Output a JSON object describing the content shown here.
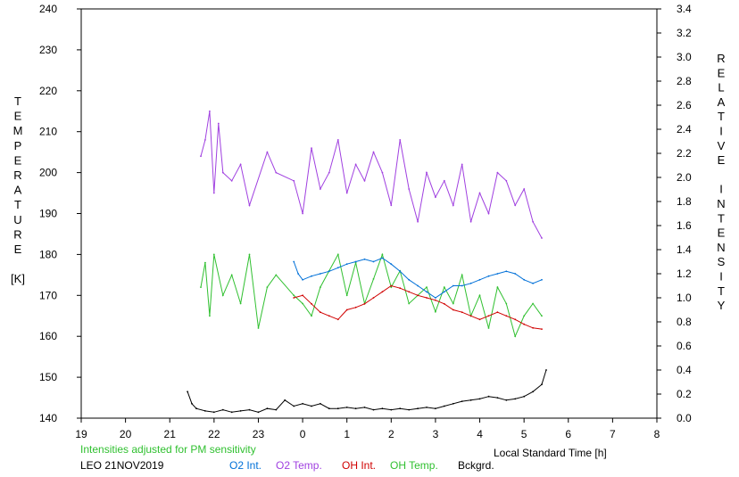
{
  "chart_data": {
    "type": "line",
    "title": "",
    "xlabel": "Local Standard Time [h]",
    "ylabel_left_letters": [
      "T",
      "E",
      "M",
      "P",
      "E",
      "R",
      "A",
      "T",
      "U",
      "R",
      "E",
      "",
      "[K]"
    ],
    "ylabel_right_letters": [
      "R",
      "E",
      "L",
      "A",
      "T",
      "I",
      "V",
      "E",
      "",
      "I",
      "N",
      "T",
      "E",
      "N",
      "S",
      "I",
      "T",
      "Y"
    ],
    "x_ticks": [
      "19",
      "20",
      "21",
      "22",
      "23",
      "0",
      "1",
      "2",
      "3",
      "4",
      "5",
      "6",
      "7",
      "8"
    ],
    "left_ticks": [
      "140",
      "150",
      "160",
      "170",
      "180",
      "190",
      "200",
      "210",
      "220",
      "230",
      "240"
    ],
    "right_ticks": [
      "0.0",
      "0.2",
      "0.4",
      "0.6",
      "0.8",
      "1.0",
      "1.2",
      "1.4",
      "1.6",
      "1.8",
      "2.0",
      "2.2",
      "2.4",
      "2.6",
      "2.8",
      "3.0",
      "3.2",
      "3.4"
    ],
    "xlim": [
      19,
      32
    ],
    "ylim_left": [
      140,
      240
    ],
    "ylim_right": [
      0,
      3.4
    ],
    "grid": false,
    "note": "Intensities adjusted for PM sensitivity",
    "station": "LEO 21NOV2019",
    "series": [
      {
        "name": "O2 Int.",
        "axis": "right",
        "color": "#0070d8",
        "x": [
          23.8,
          23.9,
          24.0,
          24.2,
          24.4,
          24.6,
          24.8,
          25.0,
          25.2,
          25.4,
          25.6,
          25.8,
          26.0,
          26.2,
          26.4,
          26.6,
          26.8,
          27.0,
          27.2,
          27.4,
          27.6,
          27.8,
          28.0,
          28.2,
          28.4,
          28.6,
          28.8,
          29.0,
          29.2,
          29.4
        ],
        "values": [
          1.3,
          1.2,
          1.15,
          1.18,
          1.2,
          1.22,
          1.25,
          1.28,
          1.3,
          1.32,
          1.3,
          1.33,
          1.28,
          1.22,
          1.15,
          1.1,
          1.05,
          1.0,
          1.05,
          1.1,
          1.1,
          1.12,
          1.15,
          1.18,
          1.2,
          1.22,
          1.2,
          1.15,
          1.12,
          1.15
        ]
      },
      {
        "name": "O2 Temp.",
        "axis": "left",
        "color": "#a040e0",
        "x": [
          21.7,
          21.8,
          21.9,
          22.0,
          22.1,
          22.2,
          22.4,
          22.6,
          22.8,
          23.2,
          23.4,
          23.8,
          24.0,
          24.2,
          24.4,
          24.6,
          24.8,
          25.0,
          25.2,
          25.4,
          25.6,
          25.8,
          26.0,
          26.2,
          26.4,
          26.6,
          26.8,
          27.0,
          27.2,
          27.4,
          27.6,
          27.8,
          28.0,
          28.2,
          28.4,
          28.6,
          28.8,
          29.0,
          29.2,
          29.4
        ],
        "values": [
          204,
          208,
          215,
          195,
          212,
          200,
          198,
          202,
          192,
          205,
          200,
          198,
          190,
          206,
          196,
          200,
          208,
          195,
          202,
          198,
          205,
          200,
          192,
          208,
          196,
          188,
          200,
          194,
          198,
          192,
          202,
          188,
          195,
          190,
          200,
          198,
          192,
          196,
          188,
          184
        ]
      },
      {
        "name": "OH Int.",
        "axis": "right",
        "color": "#d00000",
        "x": [
          23.8,
          24.0,
          24.2,
          24.4,
          24.6,
          24.8,
          25.0,
          25.2,
          25.4,
          25.6,
          25.8,
          26.0,
          26.2,
          26.4,
          26.6,
          26.8,
          27.0,
          27.2,
          27.4,
          27.6,
          27.8,
          28.0,
          28.2,
          28.4,
          28.6,
          28.8,
          29.0,
          29.2,
          29.4
        ],
        "values": [
          1.0,
          1.02,
          0.95,
          0.88,
          0.85,
          0.82,
          0.9,
          0.92,
          0.95,
          1.0,
          1.05,
          1.1,
          1.08,
          1.05,
          1.02,
          1.0,
          0.98,
          0.95,
          0.9,
          0.88,
          0.85,
          0.82,
          0.85,
          0.88,
          0.85,
          0.82,
          0.78,
          0.75,
          0.74
        ]
      },
      {
        "name": "OH Temp.",
        "axis": "left",
        "color": "#30c030",
        "x": [
          21.7,
          21.8,
          21.9,
          22.0,
          22.2,
          22.4,
          22.6,
          22.8,
          23.0,
          23.2,
          23.4,
          23.8,
          24.0,
          24.2,
          24.4,
          24.6,
          24.8,
          25.0,
          25.2,
          25.4,
          25.6,
          25.8,
          26.0,
          26.2,
          26.4,
          26.6,
          26.8,
          27.0,
          27.2,
          27.4,
          27.6,
          27.8,
          28.0,
          28.2,
          28.4,
          28.6,
          28.8,
          29.0,
          29.2,
          29.4
        ],
        "values": [
          172,
          178,
          165,
          180,
          170,
          175,
          168,
          180,
          162,
          172,
          175,
          170,
          168,
          165,
          172,
          176,
          180,
          170,
          178,
          168,
          174,
          180,
          172,
          176,
          168,
          170,
          172,
          166,
          172,
          168,
          175,
          165,
          170,
          162,
          172,
          168,
          160,
          165,
          168,
          165
        ]
      },
      {
        "name": "Bckgrd.",
        "axis": "right",
        "color": "#000000",
        "x": [
          21.4,
          21.5,
          21.6,
          21.8,
          22.0,
          22.2,
          22.4,
          22.6,
          22.8,
          23.0,
          23.2,
          23.4,
          23.6,
          23.8,
          24.0,
          24.2,
          24.4,
          24.6,
          24.8,
          25.0,
          25.2,
          25.4,
          25.6,
          25.8,
          26.0,
          26.2,
          26.4,
          26.6,
          26.8,
          27.0,
          27.2,
          27.4,
          27.6,
          27.8,
          28.0,
          28.2,
          28.4,
          28.6,
          28.8,
          29.0,
          29.2,
          29.4,
          29.5
        ],
        "values": [
          0.22,
          0.12,
          0.08,
          0.06,
          0.05,
          0.07,
          0.05,
          0.06,
          0.07,
          0.05,
          0.08,
          0.07,
          0.15,
          0.1,
          0.12,
          0.1,
          0.12,
          0.08,
          0.08,
          0.09,
          0.08,
          0.09,
          0.07,
          0.08,
          0.07,
          0.08,
          0.07,
          0.08,
          0.09,
          0.08,
          0.1,
          0.12,
          0.14,
          0.15,
          0.16,
          0.18,
          0.17,
          0.15,
          0.16,
          0.18,
          0.22,
          0.28,
          0.4
        ]
      }
    ]
  }
}
